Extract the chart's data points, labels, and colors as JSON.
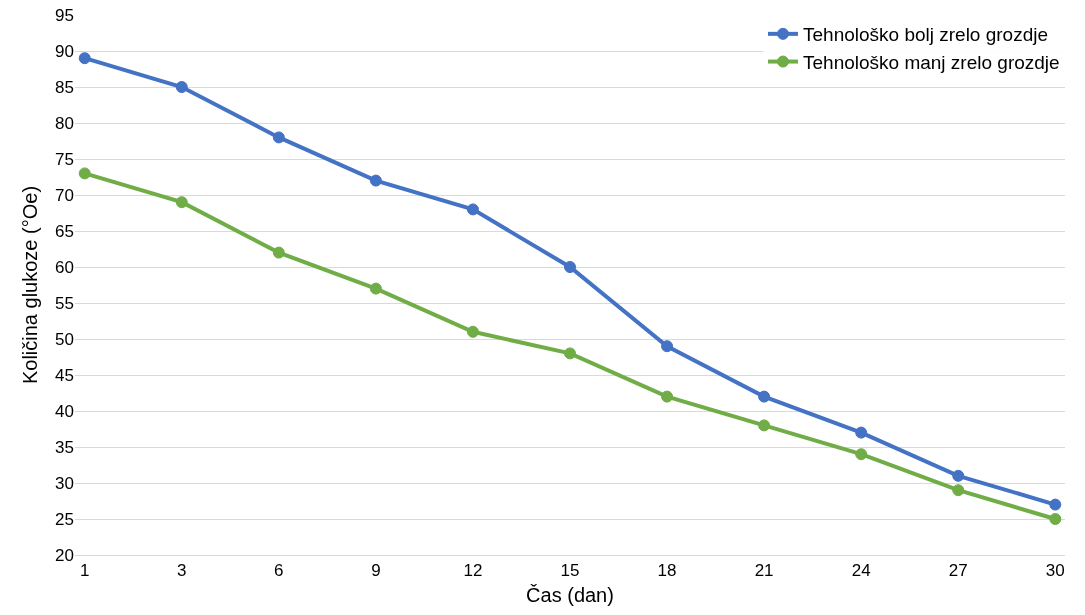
{
  "chart_data": {
    "type": "line",
    "xlabel": "Čas (dan)",
    "ylabel": "Količina glukoze (°Oe)",
    "categories": [
      "1",
      "3",
      "6",
      "9",
      "12",
      "15",
      "18",
      "21",
      "24",
      "27",
      "30"
    ],
    "series": [
      {
        "name": "Tehnološko bolj zrelo grozdje",
        "color": "#4472c4",
        "values": [
          89,
          85,
          78,
          72,
          68,
          60,
          49,
          42,
          37,
          31,
          27
        ]
      },
      {
        "name": "Tehnološko manj zrelo grozdje",
        "color": "#70ad47",
        "values": [
          73,
          69,
          62,
          57,
          51,
          48,
          42,
          38,
          34,
          29,
          25
        ]
      }
    ],
    "ylim": [
      20,
      95
    ],
    "yticks": [
      20,
      25,
      30,
      35,
      40,
      45,
      50,
      55,
      60,
      65,
      70,
      75,
      80,
      85,
      90,
      95
    ],
    "grid": "y",
    "legend": "top right",
    "marker": "circle",
    "line_style": "solid"
  }
}
